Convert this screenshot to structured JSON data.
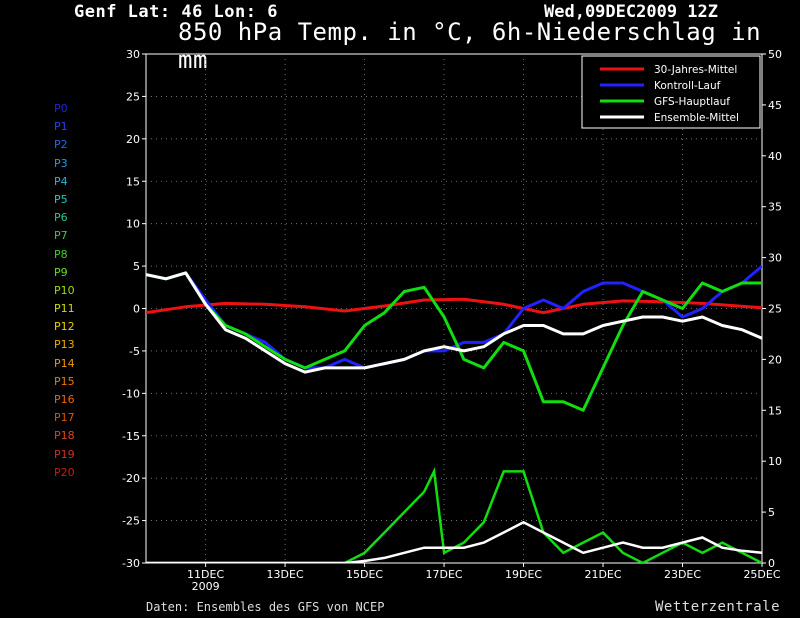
{
  "header": {
    "location": "Genf   Lat: 46 Lon: 6",
    "date": "Wed,09DEC2009 12Z",
    "title": "850 hPa Temp. in °C, 6h-Niederschlag in mm"
  },
  "footer": {
    "source": "Daten: Ensembles des GFS von NCEP",
    "brand": "Wetterzentrale"
  },
  "members": [
    {
      "label": "P0",
      "color": "#2222dd"
    },
    {
      "label": "P1",
      "color": "#2244ee"
    },
    {
      "label": "P2",
      "color": "#2266ee"
    },
    {
      "label": "P3",
      "color": "#2299ee"
    },
    {
      "label": "P4",
      "color": "#22bbdd"
    },
    {
      "label": "P5",
      "color": "#22ccbb"
    },
    {
      "label": "P6",
      "color": "#22cc88"
    },
    {
      "label": "P7",
      "color": "#33cc55"
    },
    {
      "label": "P8",
      "color": "#44cc33"
    },
    {
      "label": "P9",
      "color": "#66dd22"
    },
    {
      "label": "P10",
      "color": "#99dd11"
    },
    {
      "label": "P11",
      "color": "#ccdd00"
    },
    {
      "label": "P12",
      "color": "#eecc00"
    },
    {
      "label": "P13",
      "color": "#eeaa00"
    },
    {
      "label": "P14",
      "color": "#ee9900"
    },
    {
      "label": "P15",
      "color": "#ee7700"
    },
    {
      "label": "P16",
      "color": "#ee6600"
    },
    {
      "label": "P17",
      "color": "#dd5500"
    },
    {
      "label": "P18",
      "color": "#dd4422"
    },
    {
      "label": "P19",
      "color": "#cc3322"
    },
    {
      "label": "P20",
      "color": "#bb2211"
    }
  ],
  "chart_data": {
    "type": "line",
    "x_unit": "days since 09DEC2009 12Z",
    "x_ticks": [
      {
        "label": "11DEC",
        "sub": "2009",
        "x": 1.5
      },
      {
        "label": "13DEC",
        "x": 3.5
      },
      {
        "label": "15DEC",
        "x": 5.5
      },
      {
        "label": "17DEC",
        "x": 7.5
      },
      {
        "label": "19DEC",
        "x": 9.5
      },
      {
        "label": "21DEC",
        "x": 11.5
      },
      {
        "label": "23DEC",
        "x": 13.5
      },
      {
        "label": "25DEC",
        "x": 15.5
      }
    ],
    "xlim": [
      0,
      15.5
    ],
    "y_left": {
      "ylim": [
        -30,
        30
      ],
      "ticks": [
        -30,
        -25,
        -20,
        -15,
        -10,
        -5,
        0,
        5,
        10,
        15,
        20,
        25,
        30
      ]
    },
    "y_right": {
      "ylim": [
        0,
        50
      ],
      "ticks": [
        0,
        5,
        10,
        15,
        20,
        25,
        30,
        35,
        40,
        45,
        50
      ]
    },
    "grid": true,
    "legend": {
      "position": "top-right",
      "entries": [
        {
          "label": "30-Jahres-Mittel",
          "color": "#ee1111"
        },
        {
          "label": "Kontroll-Lauf",
          "color": "#2222ff"
        },
        {
          "label": "GFS-Hauptlauf",
          "color": "#11dd11"
        },
        {
          "label": "Ensemble-Mittel",
          "color": "#ffffff"
        }
      ]
    },
    "series": [
      {
        "name": "30-Jahres-Mittel",
        "color": "#ee1111",
        "x": [
          0,
          1,
          2,
          3,
          4,
          5,
          6,
          7,
          8,
          9,
          10,
          11,
          12,
          13,
          14,
          15.5
        ],
        "y": [
          -0.5,
          0.2,
          0.6,
          0.5,
          0.2,
          -0.3,
          0.3,
          1.0,
          1.1,
          0.5,
          -0.5,
          0.5,
          0.9,
          0.8,
          0.6,
          0.1
        ]
      },
      {
        "name": "Kontroll-Lauf",
        "color": "#2222ff",
        "x": [
          0,
          0.5,
          1,
          1.5,
          2,
          2.5,
          3,
          3.5,
          4,
          4.5,
          5,
          5.5,
          6,
          6.5,
          7,
          7.5,
          8,
          8.5,
          9,
          9.5,
          10,
          10.5,
          11,
          11.5,
          12,
          12.5,
          13,
          13.5,
          14,
          14.5,
          15,
          15.5
        ],
        "y": [
          4,
          3.5,
          4.2,
          1,
          -2,
          -3,
          -4,
          -6,
          -7,
          -7,
          -6,
          -7,
          -6.5,
          -6,
          -5,
          -5,
          -4,
          -4,
          -3,
          0,
          1,
          0,
          2,
          3,
          3,
          2,
          1,
          -1,
          0,
          2,
          3,
          5
        ]
      },
      {
        "name": "GFS-Hauptlauf",
        "color": "#11dd11",
        "x": [
          0,
          0.5,
          1,
          1.5,
          2,
          2.5,
          3,
          3.5,
          4,
          4.5,
          5,
          5.5,
          6,
          6.5,
          7,
          7.5,
          8,
          8.5,
          9,
          9.5,
          10,
          10.5,
          11,
          11.5,
          12,
          12.5,
          13,
          13.5,
          14,
          14.5,
          15,
          15.5
        ],
        "y": [
          4,
          3.5,
          4.2,
          0.5,
          -2,
          -3,
          -4.5,
          -6,
          -7,
          -6,
          -5,
          -2,
          -0.5,
          2,
          2.5,
          -1,
          -6,
          -7,
          -4,
          -5,
          -11,
          -11,
          -12,
          -7,
          -2,
          2,
          1,
          0,
          3,
          2,
          3,
          3
        ]
      },
      {
        "name": "Ensemble-Mittel",
        "color": "#ffffff",
        "x": [
          0,
          0.5,
          1,
          1.5,
          2,
          2.5,
          3,
          3.5,
          4,
          4.5,
          5,
          5.5,
          6,
          6.5,
          7,
          7.5,
          8,
          8.5,
          9,
          9.5,
          10,
          10.5,
          11,
          11.5,
          12,
          12.5,
          13,
          13.5,
          14,
          14.5,
          15,
          15.5
        ],
        "y": [
          4,
          3.5,
          4.2,
          0.5,
          -2.5,
          -3.5,
          -5,
          -6.5,
          -7.5,
          -7,
          -7,
          -7,
          -6.5,
          -6,
          -5,
          -4.5,
          -5,
          -4.5,
          -3,
          -2,
          -2,
          -3,
          -3,
          -2,
          -1.5,
          -1,
          -1,
          -1.5,
          -1,
          -2,
          -2.5,
          -3.5
        ]
      }
    ],
    "precip_series": [
      {
        "name": "GFS-Hauptlauf",
        "color": "#11dd11",
        "x": [
          0,
          1,
          2,
          3,
          4,
          5,
          5.5,
          6,
          6.5,
          7,
          7.25,
          7.5,
          8,
          8.5,
          9,
          9.5,
          10,
          10.5,
          11,
          11.5,
          12,
          12.5,
          13,
          13.5,
          14,
          14.5,
          15,
          15.5
        ],
        "y": [
          0,
          0,
          0,
          0,
          0,
          0,
          1,
          3,
          5,
          7,
          9,
          1,
          2,
          4,
          9,
          9,
          3,
          1,
          2,
          3,
          1,
          0,
          1,
          2,
          1,
          2,
          1,
          0
        ]
      },
      {
        "name": "Ensemble-Mittel",
        "color": "#ffffff",
        "x": [
          0,
          1,
          2,
          3,
          4,
          5,
          5.5,
          6,
          6.5,
          7,
          7.5,
          8,
          8.5,
          9,
          9.5,
          10,
          10.5,
          11,
          11.5,
          12,
          12.5,
          13,
          13.5,
          14,
          14.5,
          15,
          15.5
        ],
        "y": [
          0,
          0,
          0,
          0,
          0,
          0,
          0.2,
          0.5,
          1,
          1.5,
          1.5,
          1.5,
          2,
          3,
          4,
          3,
          2,
          1,
          1.5,
          2,
          1.5,
          1.5,
          2,
          2.5,
          1.5,
          1.2,
          1
        ]
      }
    ]
  }
}
